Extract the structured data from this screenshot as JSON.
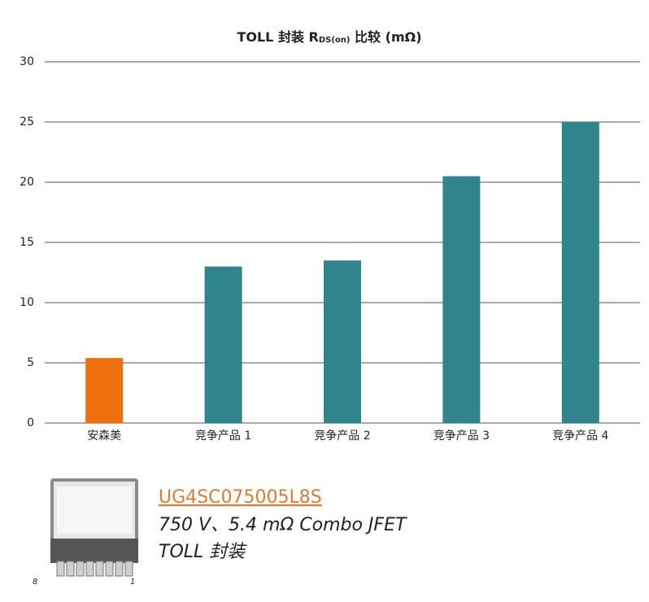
{
  "chart_data": {
    "type": "bar",
    "title": [
      "TOLL 封装 R",
      "DS(on)",
      " 比较 (mΩ)"
    ],
    "categories": [
      "安森美",
      "竞争产品 1",
      "竞争产品 2",
      "竞争产品 3",
      "竞争产品 4"
    ],
    "values": [
      5.4,
      13,
      13.5,
      20.5,
      25
    ],
    "colors": [
      "#f07010",
      "#2f848e",
      "#2f848e",
      "#2f848e",
      "#2f848e"
    ],
    "ylim": [
      0,
      30
    ],
    "yticks": [
      0,
      5,
      10,
      15,
      20,
      25,
      30
    ],
    "grid": true
  },
  "product": {
    "part_number": "UG4SC075005L8S",
    "description": "750 V、5.4 mΩ Combo JFET",
    "package": "TOLL 封装",
    "pin_labels": [
      "8",
      "1"
    ]
  }
}
